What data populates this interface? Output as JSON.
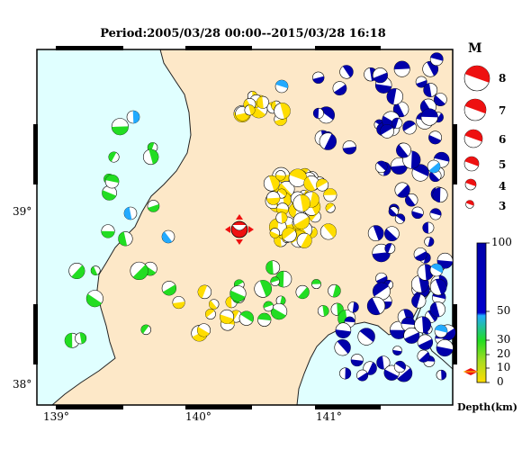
{
  "title": "Period:2005/03/28 00:00--2015/03/28 16:18",
  "axes": {
    "lon_labels": [
      "139°",
      "140°",
      "141°"
    ],
    "lat_labels": [
      "39°",
      "38°"
    ]
  },
  "magnitude_legend": {
    "header": "M",
    "values": [
      "8",
      "7",
      "6",
      "5",
      "4",
      "3"
    ]
  },
  "depth_legend": {
    "ticks": [
      "100",
      "50",
      "30",
      "20",
      "10",
      "0"
    ],
    "unit_label": "Depth(km)"
  },
  "colors": {
    "sea": "#e0ffff",
    "land": "#fde8c8",
    "deep": "#0000aa",
    "mid": "#22aaff",
    "shallow": "#22dd22",
    "very_shallow": "#ffdd00",
    "main_shock": "#ee1111"
  },
  "main_event": {
    "depth_marker": "main-shock"
  }
}
